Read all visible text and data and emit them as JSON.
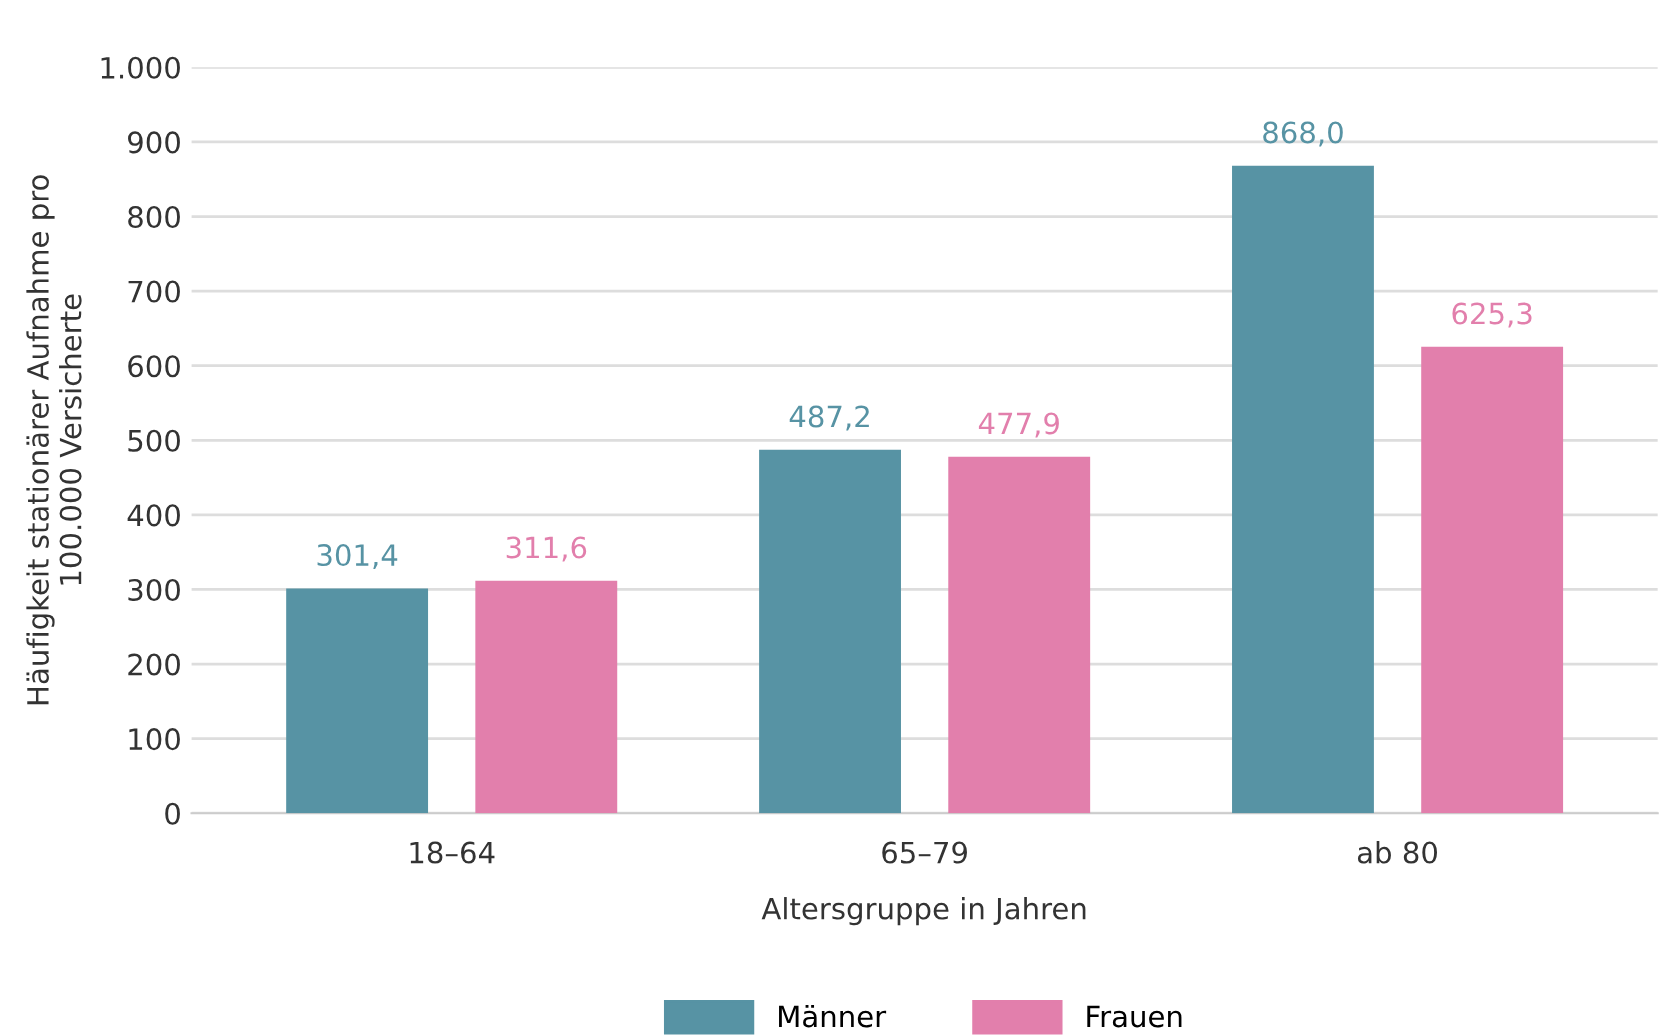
{
  "chart_data": {
    "type": "bar",
    "xlabel": "Altersgruppe in Jahren",
    "ylabel": "Häufigkeit stationärer Aufnahme pro\n100.000 Versicherte",
    "categories": [
      "18–64",
      "65–79",
      "ab 80"
    ],
    "series": [
      {
        "name": "Männer",
        "color": "#5793a4",
        "values": [
          301.4,
          487.2,
          868.0
        ],
        "value_labels": [
          "301,4",
          "487,2",
          "868,0"
        ]
      },
      {
        "name": "Frauen",
        "color": "#e27fac",
        "values": [
          311.6,
          477.9,
          625.3
        ],
        "value_labels": [
          "311,6",
          "477,9",
          "625,3"
        ]
      }
    ],
    "ylim": [
      0,
      1000
    ],
    "yticks": [
      0,
      100,
      200,
      300,
      400,
      500,
      600,
      700,
      800,
      900,
      {
        "value": 1000,
        "label": "1.000"
      }
    ],
    "grid": "y",
    "legend": "bottom"
  }
}
